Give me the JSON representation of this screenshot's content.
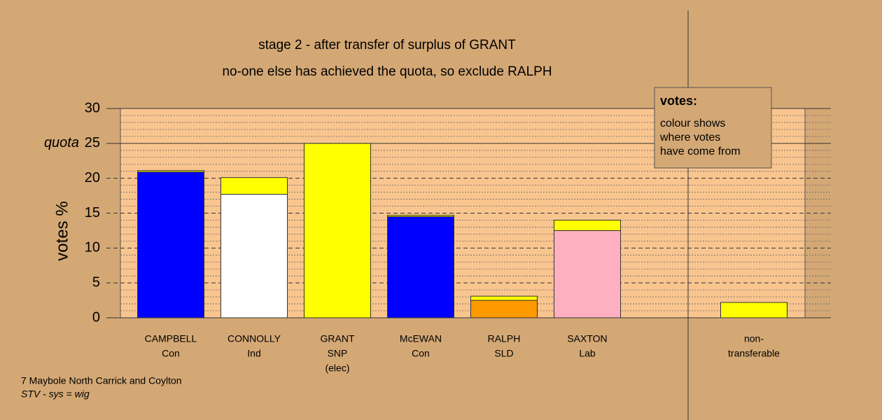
{
  "chart_data": {
    "type": "stacked_bar",
    "title": "stage 2 - after transfer of surplus of GRANT",
    "subtitle": "no-one else has achieved the quota, so exclude RALPH",
    "y_label": "votes %",
    "categories": [
      [
        "CAMPBELL",
        "Con"
      ],
      [
        "CONNOLLY",
        "Ind"
      ],
      [
        "GRANT",
        "SNP",
        "(elec)"
      ],
      [
        "McEWAN",
        "Con"
      ],
      [
        "RALPH",
        "SLD"
      ],
      [
        "SAXTON",
        "Lab"
      ],
      [
        "non-",
        "transferable"
      ]
    ],
    "series": [
      {
        "colors": [
          "#0000ff",
          "#ffffff",
          "#ffff00",
          "#0000ff",
          "#ff9900",
          "#ffb0c0",
          "#ffff00"
        ],
        "values": [
          20.9,
          17.7,
          25,
          14.5,
          2.5,
          12.5,
          null
        ]
      },
      {
        "color": "#ffff00",
        "values": [
          0.2,
          2.4,
          null,
          0.2,
          0.6,
          1.5,
          2.2
        ]
      }
    ],
    "ylim": [
      0,
      30
    ],
    "yticks": [
      0,
      5,
      10,
      15,
      20,
      {
        "value": 25,
        "label": "quota"
      },
      30
    ],
    "minor_yticks": [
      1,
      2,
      3,
      4,
      6,
      7,
      8,
      9,
      11,
      12,
      13,
      14,
      16,
      17,
      18,
      19,
      21,
      22,
      23,
      24,
      26,
      27,
      28,
      29
    ],
    "grid": true,
    "legend_box": {
      "title": "votes:",
      "lines": [
        "colour shows",
        "where votes",
        "have come from"
      ]
    },
    "footer": [
      "7 Maybole North Carrick and Coylton",
      "STV - sys = wig"
    ]
  }
}
